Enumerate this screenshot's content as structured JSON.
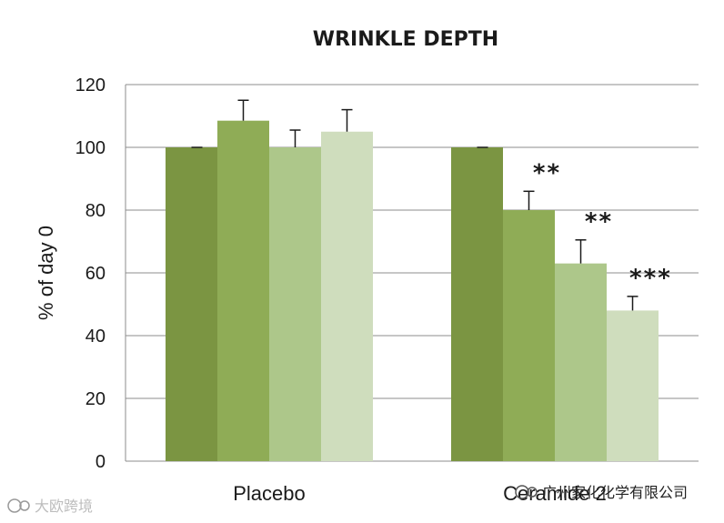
{
  "chart_data": {
    "type": "bar",
    "title": "WRINKLE DEPTH",
    "xlabel": "",
    "ylabel": "% of day 0",
    "ylim": [
      0,
      120
    ],
    "yticks": [
      0,
      20,
      40,
      60,
      80,
      100,
      120
    ],
    "grid": true,
    "categories": [
      "Placebo",
      "Ceramide 2"
    ],
    "series": [
      {
        "color": "#7b9542",
        "values": [
          100,
          100
        ],
        "errors": [
          0,
          0
        ],
        "significance": [
          "",
          ""
        ]
      },
      {
        "color": "#8fac56",
        "values": [
          108.5,
          80
        ],
        "errors": [
          6.5,
          6
        ],
        "significance": [
          "",
          "**"
        ]
      },
      {
        "color": "#adc78a",
        "values": [
          100,
          63
        ],
        "errors": [
          5.5,
          7.5
        ],
        "significance": [
          "",
          "**"
        ]
      },
      {
        "color": "#cfddbd",
        "values": [
          105,
          48
        ],
        "errors": [
          7,
          4.5
        ],
        "significance": [
          "",
          "***"
        ]
      }
    ]
  },
  "watermark_left": "大欧跨境",
  "watermark_right": "广州家化化学有限公司"
}
